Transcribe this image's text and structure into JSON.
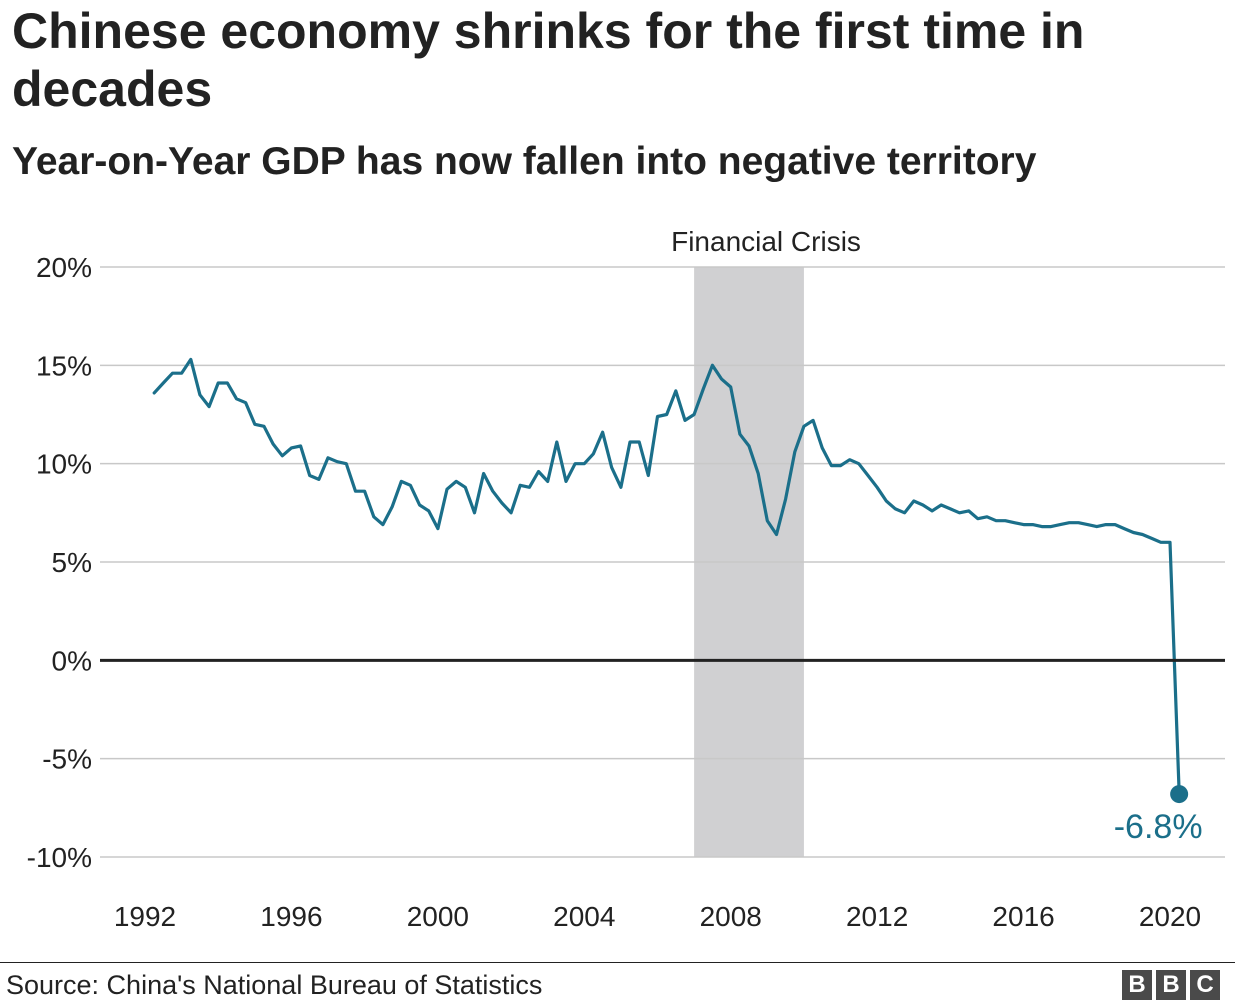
{
  "title": "Chinese economy shrinks for the first time in decades",
  "subtitle": "Year-on-Year GDP has now fallen into negative territory",
  "source": "Source: China's National Bureau of Statistics",
  "logo": [
    "B",
    "B",
    "C"
  ],
  "colors": {
    "line": "#1b6f8a",
    "shade": "#d0d0d2",
    "grid": "#c8c8c8",
    "zero": "#222222"
  },
  "chart_data": {
    "type": "line",
    "xlim": [
      1992,
      2020.5
    ],
    "ylim": [
      -10,
      20
    ],
    "x_ticks": [
      1992,
      1996,
      2000,
      2004,
      2008,
      2012,
      2016,
      2020
    ],
    "y_ticks": [
      -10,
      -5,
      0,
      5,
      10,
      15,
      20
    ],
    "x_tick_labels": [
      "1992",
      "1996",
      "2000",
      "2004",
      "2008",
      "2012",
      "2016",
      "2020"
    ],
    "y_tick_labels": [
      "-10%",
      "-5%",
      "0%",
      "5%",
      "10%",
      "15%",
      "20%"
    ],
    "grid": true,
    "shaded_region": {
      "x": [
        2007,
        2010
      ],
      "label": "Financial Crisis"
    },
    "end_label": "-6.8%",
    "series": [
      {
        "x": [
          1992.25,
          1992.5,
          1992.75,
          1993,
          1993.25,
          1993.5,
          1993.75,
          1994,
          1994.25,
          1994.5,
          1994.75,
          1995,
          1995.25,
          1995.5,
          1995.75,
          1996,
          1996.25,
          1996.5,
          1996.75,
          1997,
          1997.25,
          1997.5,
          1997.75,
          1998,
          1998.25,
          1998.5,
          1998.75,
          1999,
          1999.25,
          1999.5,
          1999.75,
          2000,
          2000.25,
          2000.5,
          2000.75,
          2001,
          2001.25,
          2001.5,
          2001.75,
          2002,
          2002.25,
          2002.5,
          2002.75,
          2003,
          2003.25,
          2003.5,
          2003.75,
          2004,
          2004.25,
          2004.5,
          2004.75,
          2005,
          2005.25,
          2005.5,
          2005.75,
          2006,
          2006.25,
          2006.5,
          2006.75,
          2007,
          2007.25,
          2007.5,
          2007.75,
          2008,
          2008.25,
          2008.5,
          2008.75,
          2009,
          2009.25,
          2009.5,
          2009.75,
          2010,
          2010.25,
          2010.5,
          2010.75,
          2011,
          2011.25,
          2011.5,
          2011.75,
          2012,
          2012.25,
          2012.5,
          2012.75,
          2013,
          2013.25,
          2013.5,
          2013.75,
          2014,
          2014.25,
          2014.5,
          2014.75,
          2015,
          2015.25,
          2015.5,
          2015.75,
          2016,
          2016.25,
          2016.5,
          2016.75,
          2017,
          2017.25,
          2017.5,
          2017.75,
          2018,
          2018.25,
          2018.5,
          2018.75,
          2019,
          2019.25,
          2019.5,
          2019.75,
          2020,
          2020.25
        ],
        "values": [
          13.6,
          14.1,
          14.6,
          14.6,
          15.3,
          13.5,
          12.9,
          14.1,
          14.1,
          13.3,
          13.1,
          12.0,
          11.9,
          11.0,
          10.4,
          10.8,
          10.9,
          9.4,
          9.2,
          10.3,
          10.1,
          10.0,
          8.6,
          8.6,
          7.3,
          6.9,
          7.8,
          9.1,
          8.9,
          7.9,
          7.6,
          6.7,
          8.7,
          9.1,
          8.8,
          7.5,
          9.5,
          8.6,
          8.0,
          7.5,
          8.9,
          8.8,
          9.6,
          9.1,
          11.1,
          9.1,
          10.0,
          10.0,
          10.5,
          11.6,
          9.8,
          8.8,
          11.1,
          11.1,
          9.4,
          12.4,
          12.5,
          13.7,
          12.2,
          12.5,
          13.8,
          15.0,
          14.3,
          13.9,
          11.5,
          10.9,
          9.5,
          7.1,
          6.4,
          8.2,
          10.6,
          11.9,
          12.2,
          10.8,
          9.9,
          9.9,
          10.2,
          10.0,
          9.4,
          8.8,
          8.1,
          7.7,
          7.5,
          8.1,
          7.9,
          7.6,
          7.9,
          7.7,
          7.5,
          7.6,
          7.2,
          7.3,
          7.1,
          7.1,
          7.0,
          6.9,
          6.9,
          6.8,
          6.8,
          6.9,
          7.0,
          7.0,
          6.9,
          6.8,
          6.9,
          6.9,
          6.7,
          6.5,
          6.4,
          6.2,
          6.0,
          6.0,
          -6.8
        ]
      }
    ]
  }
}
